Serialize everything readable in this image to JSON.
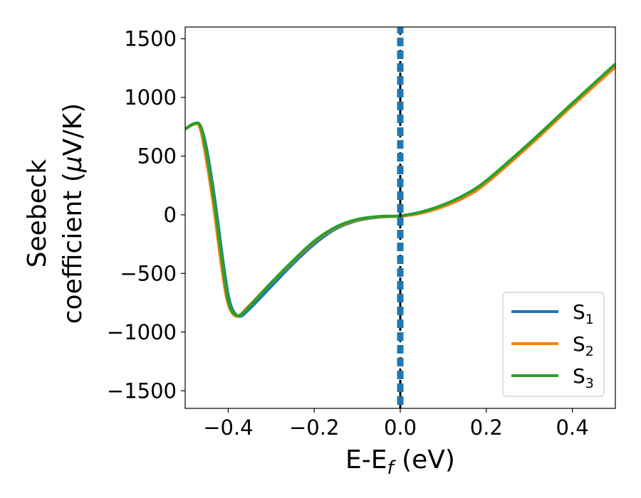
{
  "chart_data": {
    "type": "line",
    "xlabel": {
      "main": "E-E",
      "sub": "f",
      "unit": " (eV)"
    },
    "ylabel": {
      "line1": "Seebeck",
      "line2_pre": "coefficient  (",
      "mu": "μ",
      "line2_post": "V/K)"
    },
    "xlim": [
      -0.5,
      0.5
    ],
    "ylim": [
      -1650,
      1600
    ],
    "x_ticks": [
      -0.4,
      -0.2,
      0.0,
      0.2,
      0.4
    ],
    "x_tick_labels": [
      "−0.4",
      "−0.2",
      "0.0",
      "0.2",
      "0.4"
    ],
    "y_ticks": [
      -1500,
      -1000,
      -500,
      0,
      500,
      1000,
      1500
    ],
    "y_tick_labels": [
      "−1500",
      "−1000",
      "−500",
      "0",
      "500",
      "1000",
      "1500"
    ],
    "grid": false,
    "legend_position": "bottom-right",
    "vertical_line": {
      "x": 0.0,
      "style": "dashed",
      "colors": [
        "#000000",
        "#1f77b4"
      ]
    },
    "series": [
      {
        "name": "S",
        "sub": "1",
        "color": "#1f77b4",
        "x": [
          -0.5,
          -0.48,
          -0.465,
          -0.45,
          -0.43,
          -0.41,
          -0.395,
          -0.375,
          -0.35,
          -0.3,
          -0.25,
          -0.2,
          -0.15,
          -0.1,
          -0.05,
          0.0,
          0.05,
          0.1,
          0.15,
          0.2,
          0.3,
          0.4,
          0.5
        ],
        "y": [
          730,
          775,
          760,
          560,
          100,
          -450,
          -760,
          -865,
          -800,
          -610,
          -420,
          -250,
          -120,
          -50,
          -20,
          -10,
          20,
          80,
          160,
          280,
          600,
          940,
          1270
        ]
      },
      {
        "name": "S",
        "sub": "2",
        "color": "#ff7f0e",
        "x": [
          -0.5,
          -0.48,
          -0.467,
          -0.455,
          -0.435,
          -0.415,
          -0.4,
          -0.38,
          -0.355,
          -0.3,
          -0.25,
          -0.2,
          -0.15,
          -0.1,
          -0.05,
          0.0,
          0.05,
          0.1,
          0.15,
          0.2,
          0.3,
          0.4,
          0.5
        ],
        "y": [
          730,
          772,
          755,
          560,
          100,
          -450,
          -760,
          -865,
          -790,
          -580,
          -400,
          -230,
          -110,
          -45,
          -18,
          -12,
          15,
          70,
          150,
          270,
          590,
          930,
          1260
        ]
      },
      {
        "name": "S",
        "sub": "3",
        "color": "#2ca02c",
        "x": [
          -0.5,
          -0.48,
          -0.465,
          -0.452,
          -0.432,
          -0.412,
          -0.398,
          -0.378,
          -0.353,
          -0.3,
          -0.25,
          -0.2,
          -0.15,
          -0.1,
          -0.05,
          0.0,
          0.05,
          0.1,
          0.15,
          0.2,
          0.3,
          0.4,
          0.5
        ],
        "y": [
          730,
          775,
          760,
          560,
          100,
          -450,
          -760,
          -860,
          -790,
          -580,
          -395,
          -225,
          -105,
          -40,
          -15,
          -8,
          25,
          85,
          170,
          290,
          610,
          950,
          1285
        ]
      }
    ]
  }
}
